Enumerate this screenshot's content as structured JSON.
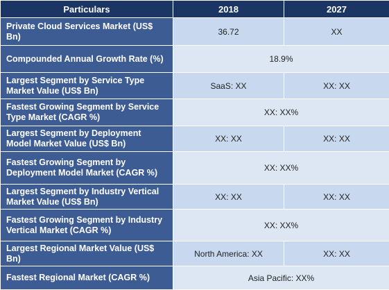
{
  "header": {
    "col1": "Particulars",
    "col2": "2018",
    "col3": "2027"
  },
  "rows": [
    {
      "label": "Private Cloud Services Market (US$ Bn)",
      "v2018": "36.72",
      "v2027": "XX"
    },
    {
      "label": "Compounded Annual Growth Rate (%)",
      "merged": "18.9%"
    },
    {
      "label": "Largest Segment by Service Type Market Value (US$ Bn)",
      "v2018": "SaaS: XX",
      "v2027": "XX: XX"
    },
    {
      "label": "Fastest Growing Segment by Service Type Market (CAGR %)",
      "merged": "XX: XX%"
    },
    {
      "label": "Largest Segment by Deployment Model Market Value (US$ Bn)",
      "v2018": "XX: XX",
      "v2027": "XX: XX"
    },
    {
      "label": "Fastest Growing Segment by Deployment Model Market (CAGR %)",
      "merged": "XX: XX%"
    },
    {
      "label": "Largest Segment by Industry Vertical Market Value (US$ Bn)",
      "v2018": "XX: XX",
      "v2027": "XX: XX"
    },
    {
      "label": "Fastest Growing Segment by Industry Vertical Market (CAGR %)",
      "merged": "XX: XX%"
    },
    {
      "label": "Largest Regional Market Value (US$ Bn)",
      "v2018": "North America: XX",
      "v2027": "XX: XX"
    },
    {
      "label": "Fastest Regional Market (CAGR %)",
      "merged": "Asia Pacific: XX%"
    }
  ]
}
